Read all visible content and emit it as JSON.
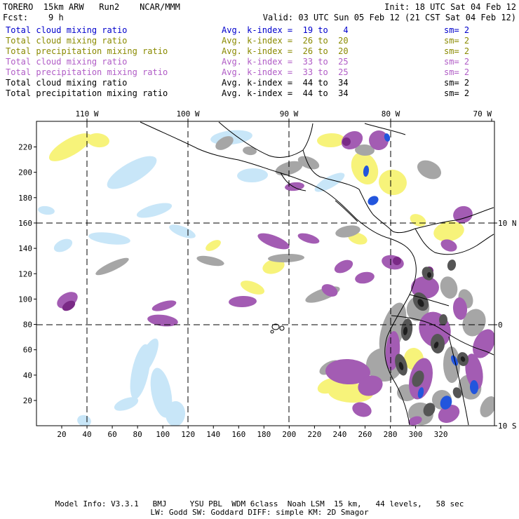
{
  "header": {
    "title": "TORERO  15km ARW   Run2    NCAR/MMM",
    "init": "Init: 18 UTC Sat 04 Feb 12",
    "fcst": "Fcst:    9 h",
    "valid": "Valid: 03 UTC Sun 05 Feb 12 (21 CST Sat 04 Feb 12)"
  },
  "legend": [
    {
      "field": "Total cloud mixing ratio",
      "kindex": "Avg. k-index =  19 to   4",
      "sm": "sm= 2",
      "color": "#0000cc"
    },
    {
      "field": "Total cloud mixing ratio",
      "kindex": "Avg. k-index =  26 to  20",
      "sm": "sm= 2",
      "color": "#8a8a00"
    },
    {
      "field": "Total precipitation mixing ratio",
      "kindex": "Avg. k-index =  26 to  20",
      "sm": "sm= 2",
      "color": "#8a8a00"
    },
    {
      "field": "Total cloud mixing ratio",
      "kindex": "Avg. k-index =  33 to  25",
      "sm": "sm= 2",
      "color": "#b05cc6"
    },
    {
      "field": "Total precipitation mixing ratio",
      "kindex": "Avg. k-index =  33 to  25",
      "sm": "sm= 2",
      "color": "#b05cc6"
    },
    {
      "field": "Total cloud mixing ratio",
      "kindex": "Avg. k-index =  44 to  34",
      "sm": "sm= 2",
      "color": "#000000"
    },
    {
      "field": "Total precipitation mixing ratio",
      "kindex": "Avg. k-index =  44 to  34",
      "sm": "sm= 2",
      "color": "#000000"
    }
  ],
  "map": {
    "top_lon_labels": [
      "110 W",
      "100 W",
      "90 W",
      "80 W",
      "70 W"
    ],
    "right_lat_labels": [
      "10 N",
      "0",
      "10 S"
    ],
    "x_ticks": [
      "20",
      "40",
      "60",
      "80",
      "100",
      "120",
      "140",
      "160",
      "180",
      "200",
      "220",
      "240",
      "260",
      "280",
      "300",
      "320"
    ],
    "y_ticks": [
      "20",
      "40",
      "60",
      "80",
      "100",
      "120",
      "140",
      "160",
      "180",
      "200",
      "220"
    ],
    "colors": {
      "light_blue": "#c8e6f8",
      "blue": "#2255dd",
      "yellow": "#f7f37a",
      "purple": "#a35cb3",
      "dark_purple": "#7a2a86",
      "gray": "#a6a6a6",
      "dark_gray": "#555555",
      "black": "#1e1e1e"
    }
  },
  "footer": {
    "line1": "Model Info: V3.3.1   BMJ     YSU PBL  WDM 6class  Noah LSM  15 km,   44 levels,   58 sec",
    "line2": "LW: Godd SW: Goddard DIFF: simple KM: 2D Smagor"
  }
}
